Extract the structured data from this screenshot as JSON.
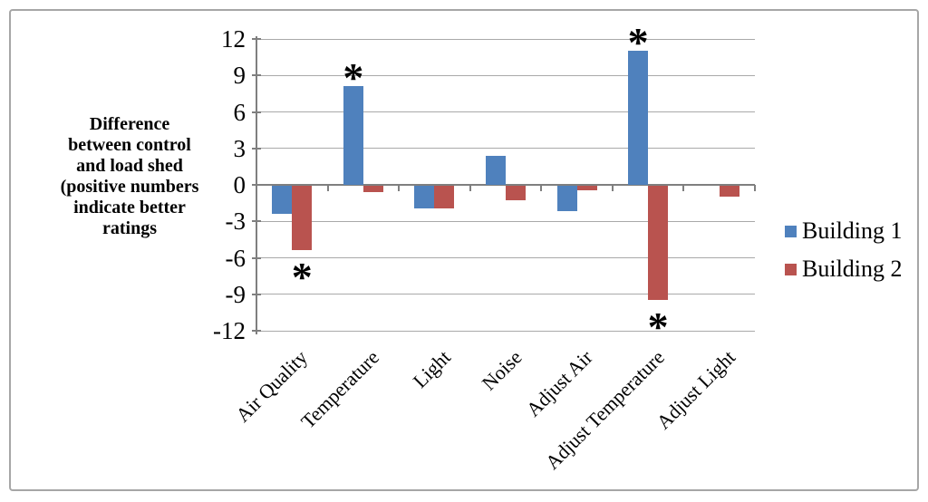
{
  "chart_data": {
    "type": "bar",
    "title": "",
    "ylabel_lines": [
      "Difference",
      "between control",
      "and load shed",
      "(positive numbers",
      "indicate better",
      "ratings"
    ],
    "categories": [
      "Air Quality",
      "Temperature",
      "Light",
      "Noise",
      "Adjust Air",
      "Adjust Temperature",
      "Adjust Light"
    ],
    "series": [
      {
        "name": "Building 1",
        "color": "#4f81bd",
        "values": [
          -2.3,
          8.1,
          -1.9,
          2.4,
          -2.1,
          11.0,
          0
        ]
      },
      {
        "name": "Building 2",
        "color": "#b9534f",
        "values": [
          -5.3,
          -0.5,
          -1.9,
          -1.2,
          -0.4,
          -9.4,
          -0.9
        ]
      }
    ],
    "ylim": [
      -12,
      12
    ],
    "yticks": [
      12,
      9,
      6,
      3,
      0,
      -3,
      -6,
      -9,
      -12
    ],
    "grid": true,
    "legend_position": "right",
    "annotations": [
      {
        "category": "Temperature",
        "series": "Building 1",
        "position": "above",
        "symbol": "*"
      },
      {
        "category": "Air Quality",
        "series": "Building 2",
        "position": "below",
        "symbol": "*"
      },
      {
        "category": "Adjust Temperature",
        "series": "Building 1",
        "position": "above",
        "symbol": "*"
      },
      {
        "category": "Adjust Temperature",
        "series": "Building 2",
        "position": "below",
        "symbol": "*"
      }
    ]
  },
  "colors": {
    "gridline": "#a9a9a9",
    "axis": "#7f7f7f",
    "figure_border": "#a6a6a6",
    "text": "#000000"
  }
}
